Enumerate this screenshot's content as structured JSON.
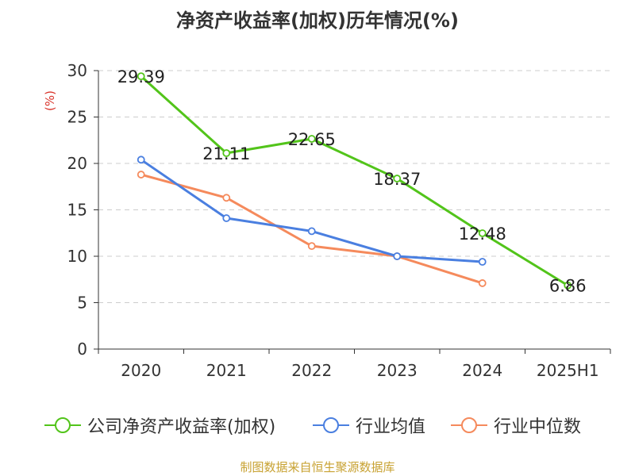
{
  "title": "净资产收益率(加权)历年情况(%)",
  "source": "制图数据来自恒生聚源数据库",
  "chart_data": {
    "type": "line",
    "ylabel": "(%)",
    "xlabel": "",
    "ylim": [
      0,
      30
    ],
    "yticks": [
      0,
      5,
      10,
      15,
      20,
      25,
      30
    ],
    "grid": true,
    "legend_position": "bottom",
    "categories": [
      "2020",
      "2021",
      "2022",
      "2023",
      "2024",
      "2025H1"
    ],
    "series": [
      {
        "name": "公司净资产收益率(加权)",
        "color": "#52c41a",
        "values": [
          29.39,
          21.11,
          22.65,
          18.37,
          12.48,
          6.86
        ],
        "show_labels": true
      },
      {
        "name": "行业均值",
        "color": "#4a7fe0",
        "values": [
          20.4,
          14.1,
          12.7,
          10.0,
          9.4,
          null
        ],
        "show_labels": false
      },
      {
        "name": "行业中位数",
        "color": "#f58a5c",
        "values": [
          18.8,
          16.3,
          11.1,
          10.0,
          7.1,
          null
        ],
        "show_labels": false
      }
    ]
  }
}
